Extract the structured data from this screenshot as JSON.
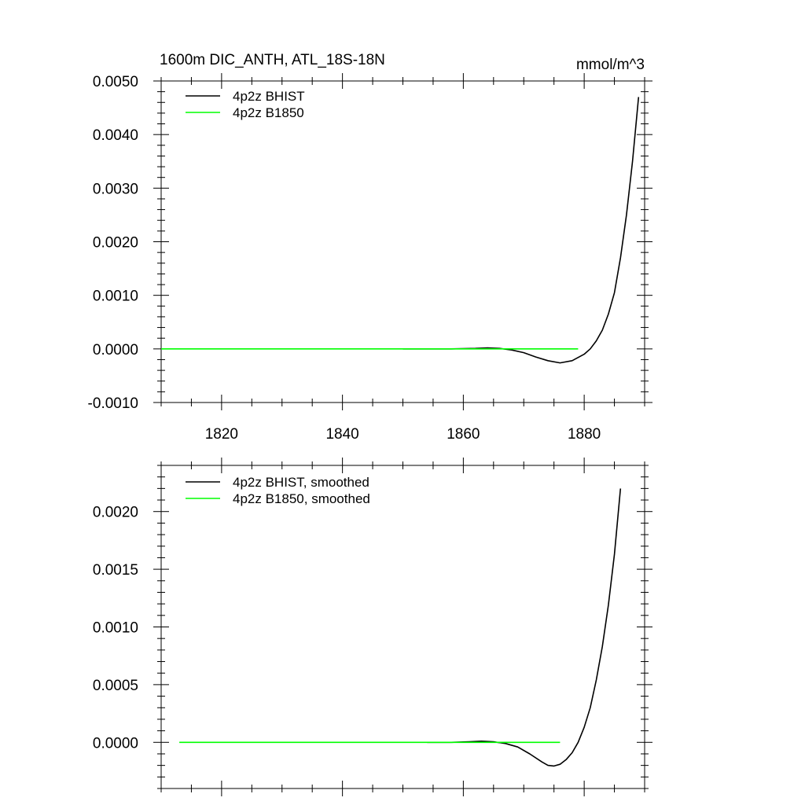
{
  "chart_data": [
    {
      "type": "line",
      "title": "1600m DIC_ANTH, ATL_18S-18N",
      "units": "mmol/m^3",
      "xlabel": "",
      "ylabel": "",
      "xlim": [
        1810,
        1890
      ],
      "ylim": [
        -0.001,
        0.005
      ],
      "x_ticks": [
        1820,
        1840,
        1860,
        1880
      ],
      "x_tick_labels": [
        "1820",
        "1840",
        "1860",
        "1880"
      ],
      "y_ticks": [
        -0.001,
        0.0,
        0.001,
        0.002,
        0.003,
        0.004,
        0.005
      ],
      "y_tick_labels": [
        "-0.0010",
        "0.0000",
        "0.0010",
        "0.0020",
        "0.0030",
        "0.0040",
        "0.0050"
      ],
      "legend_position": "top-left",
      "grid": false,
      "series": [
        {
          "name": "4p2z BHIST",
          "color": "#000000",
          "x": [
            1850,
            1854,
            1858,
            1862,
            1864,
            1866,
            1868,
            1870,
            1872,
            1874,
            1876,
            1878,
            1880,
            1881,
            1882,
            1883,
            1884,
            1885,
            1886,
            1887,
            1888,
            1889
          ],
          "y": [
            0.0,
            0.0,
            0.0,
            1e-05,
            2e-05,
            1e-05,
            -2e-05,
            -7e-05,
            -0.00015,
            -0.00022,
            -0.00026,
            -0.00022,
            -0.0001,
            0.0,
            0.00015,
            0.00035,
            0.00065,
            0.00105,
            0.0017,
            0.0025,
            0.0035,
            0.0047
          ]
        },
        {
          "name": "4p2z B1850",
          "color": "#00ff00",
          "x": [
            1810,
            1879
          ],
          "y": [
            0.0,
            0.0
          ]
        }
      ]
    },
    {
      "type": "line",
      "title": "",
      "xlabel": "",
      "ylabel": "",
      "xlim": [
        1810,
        1890
      ],
      "ylim": [
        -0.0004,
        0.0024
      ],
      "x_ticks": [
        1820,
        1840,
        1860,
        1880
      ],
      "x_tick_labels": [],
      "y_ticks": [
        0.0,
        0.0005,
        0.001,
        0.0015,
        0.002
      ],
      "y_tick_labels": [
        "0.0000",
        "0.0005",
        "0.0010",
        "0.0015",
        "0.0020"
      ],
      "legend_position": "top-left",
      "grid": false,
      "series": [
        {
          "name": "4p2z BHIST, smoothed",
          "color": "#000000",
          "x": [
            1854,
            1858,
            1861,
            1863,
            1865,
            1867,
            1869,
            1871,
            1873,
            1874,
            1875,
            1876,
            1877,
            1878,
            1879,
            1880,
            1881,
            1882,
            1883,
            1884,
            1885,
            1886
          ],
          "y": [
            0.0,
            0.0,
            5e-06,
            1e-05,
            5e-06,
            -1e-05,
            -4e-05,
            -0.0001,
            -0.00017,
            -0.0002,
            -0.000205,
            -0.00019,
            -0.00015,
            -9e-05,
            0.0,
            0.00013,
            0.0003,
            0.00054,
            0.00083,
            0.00119,
            0.00163,
            0.0022
          ]
        },
        {
          "name": "4p2z B1850, smoothed",
          "color": "#00ff00",
          "x": [
            1813,
            1876
          ],
          "y": [
            0.0,
            0.0
          ]
        }
      ]
    }
  ]
}
